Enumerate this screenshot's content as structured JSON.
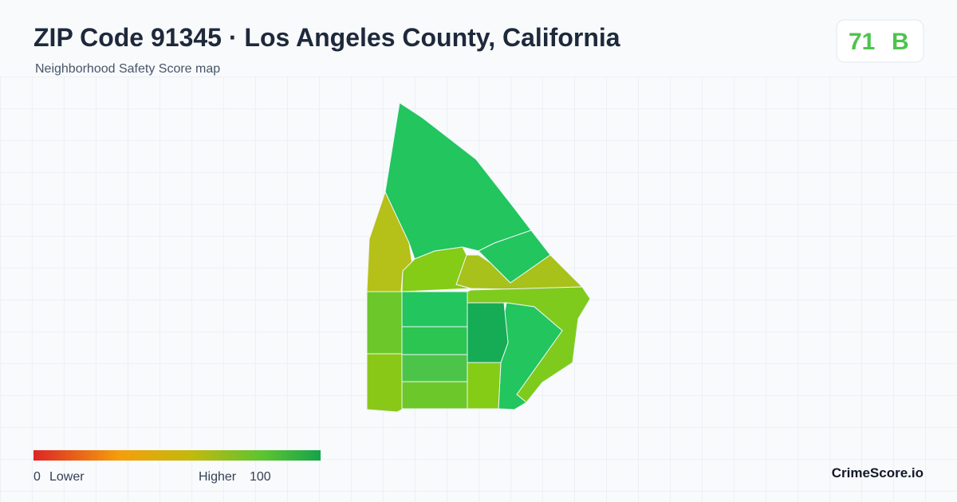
{
  "header": {
    "title": "ZIP Code 91345 · Los Angeles County, California",
    "subtitle": "Neighborhood Safety Score map"
  },
  "score": {
    "value": "71",
    "grade": "B"
  },
  "legend": {
    "min": "0",
    "min_label": "Lower",
    "max_label": "Higher",
    "max": "100"
  },
  "brand": "CrimeScore.io"
}
